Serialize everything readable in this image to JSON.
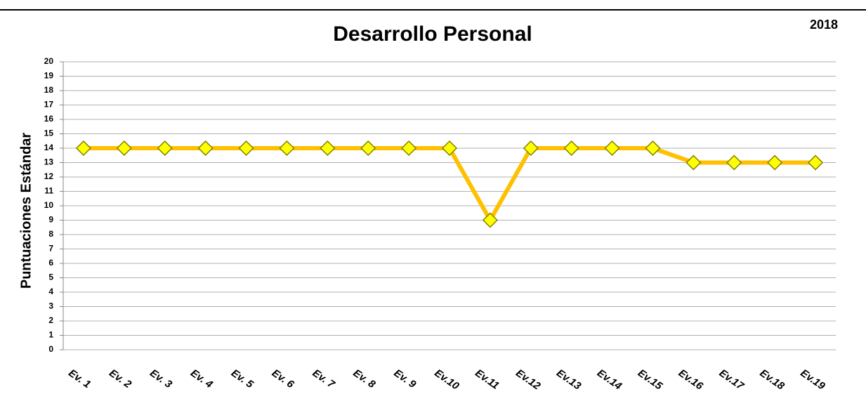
{
  "chart_data": {
    "type": "line",
    "title": "Desarrollo Personal",
    "subtitle": "2018",
    "y_label": "Puntuaciones Estándar",
    "categories": [
      "Ev. 1",
      "Ev. 2",
      "Ev. 3",
      "Ev. 4",
      "Ev. 5",
      "Ev. 6",
      "Ev. 7",
      "Ev. 8",
      "Ev. 9",
      "Ev.10",
      "Ev.11",
      "Ev.12",
      "Ev.13",
      "Ev.14",
      "Ev.15",
      "Ev.16",
      "Ev.17",
      "Ev.18",
      "Ev.19"
    ],
    "values": [
      14,
      14,
      14,
      14,
      14,
      14,
      14,
      14,
      14,
      14,
      9,
      14,
      14,
      14,
      14,
      13,
      13,
      13,
      13
    ],
    "color": "#ffc000",
    "marker_color": "#ffff00",
    "ylim": [
      0,
      20
    ],
    "yticks": [
      0,
      1,
      2,
      3,
      4,
      5,
      6,
      7,
      8,
      9,
      10,
      11,
      12,
      13,
      14,
      15,
      16,
      17,
      18,
      19,
      20
    ],
    "grid": true
  }
}
